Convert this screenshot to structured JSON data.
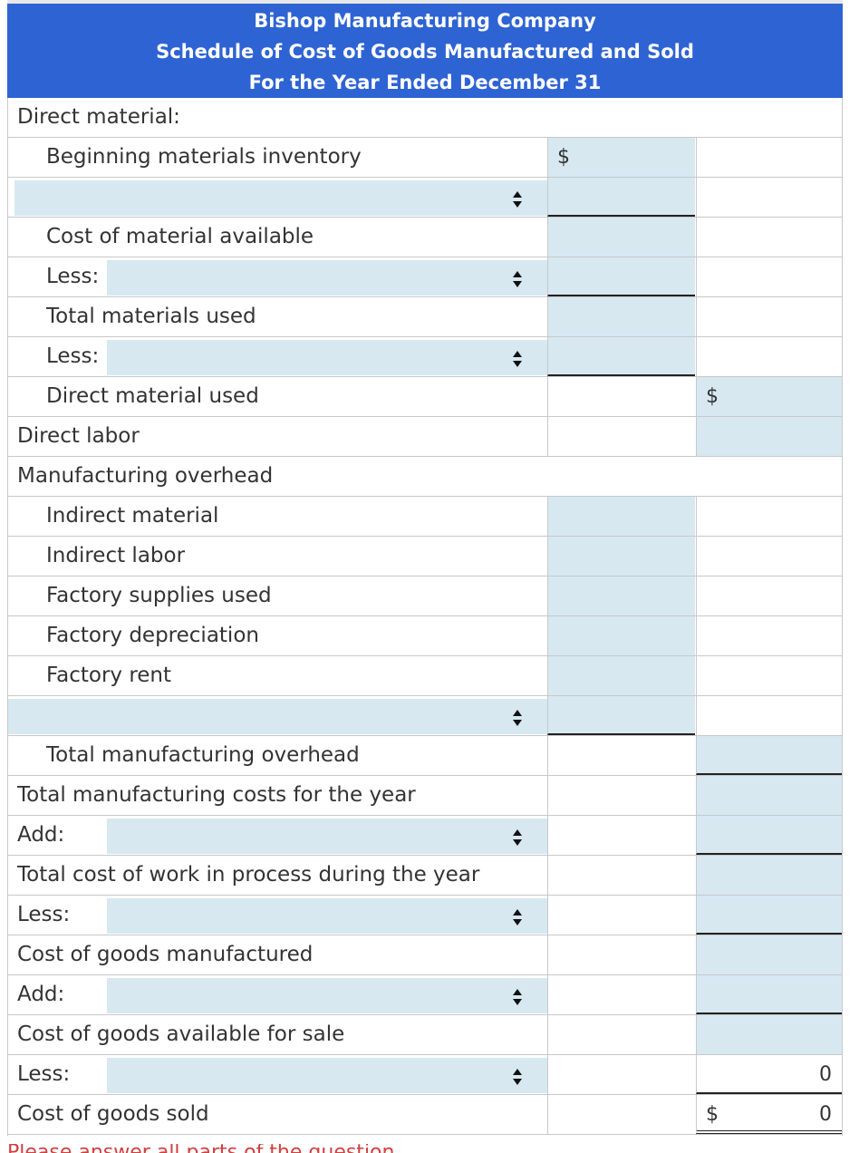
{
  "header": {
    "company": "Bishop Manufacturing Company",
    "title": "Schedule of Cost of Goods Manufactured and Sold",
    "period": "For the Year Ended December 31"
  },
  "rows": [
    {
      "label": "Direct material:",
      "indent": 0
    },
    {
      "label": "Beginning materials inventory",
      "indent": 1,
      "col1_dollar": "$"
    },
    {
      "label": "",
      "indent": 1,
      "dropdown": true
    },
    {
      "label": "Cost of material available",
      "indent": 1
    },
    {
      "lead": "Less:",
      "indent": 1,
      "dropdown": true
    },
    {
      "label": "Total materials used",
      "indent": 1
    },
    {
      "lead": "Less:",
      "indent": 1,
      "dropdown": true
    },
    {
      "label": "Direct material used",
      "indent": 1,
      "col2_dollar": "$"
    },
    {
      "label": "Direct labor",
      "indent": 0
    },
    {
      "label": "Manufacturing overhead",
      "indent": 0
    },
    {
      "label": "Indirect material",
      "indent": 1
    },
    {
      "label": "Indirect labor",
      "indent": 1
    },
    {
      "label": "Factory supplies used",
      "indent": 1
    },
    {
      "label": "Factory depreciation",
      "indent": 1
    },
    {
      "label": "Factory rent",
      "indent": 1
    },
    {
      "label": "",
      "indent": 1,
      "dropdown": true
    },
    {
      "label": "Total manufacturing overhead",
      "indent": 1
    },
    {
      "label": "Total manufacturing costs for the year",
      "indent": 0
    },
    {
      "lead": "Add:",
      "indent": 0,
      "dropdown": true
    },
    {
      "label": "Total cost of work in process during the year",
      "indent": 0
    },
    {
      "lead": "Less:",
      "indent": 0,
      "dropdown": true
    },
    {
      "label": "Cost of goods manufactured",
      "indent": 0
    },
    {
      "lead": "Add:",
      "indent": 0,
      "dropdown": true
    },
    {
      "label": "Cost of goods available for sale",
      "indent": 0
    },
    {
      "lead": "Less:",
      "indent": 0,
      "dropdown": true,
      "col2_value": "0"
    },
    {
      "label": "Cost of goods sold",
      "indent": 0,
      "col2_dollar": "$",
      "col2_value": "0"
    }
  ],
  "footer": "Please answer all parts of the question"
}
